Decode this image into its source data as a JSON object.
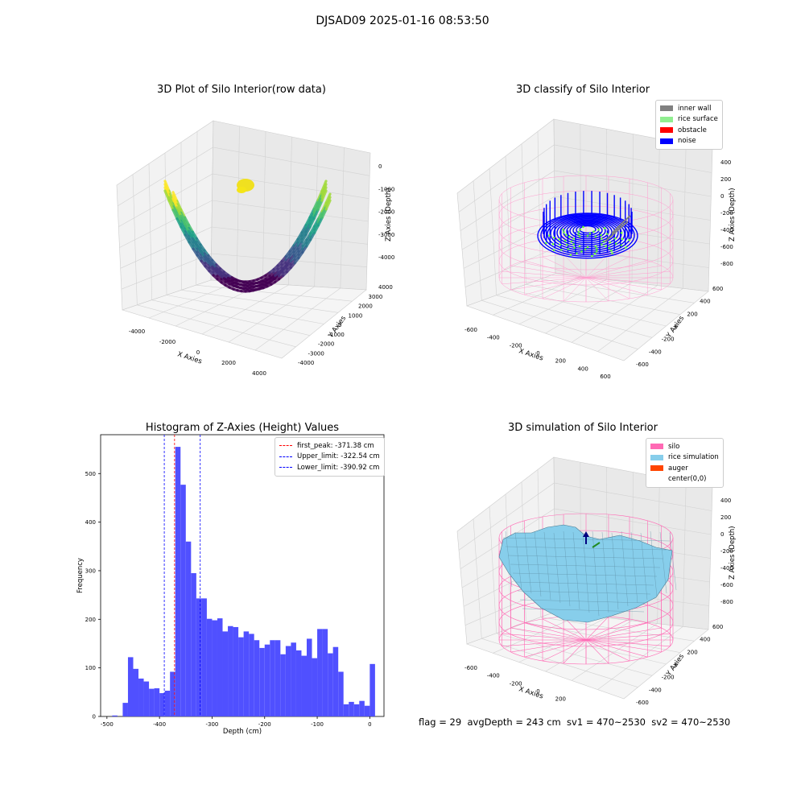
{
  "title": "DJSAD09 2025-01-16 08:53:50",
  "status_text": "flag = 29  avgDepth = 243 cm  sv1 = 470~2530  sv2 = 470~2530",
  "chart_data": [
    {
      "type": "scatter3d",
      "title": "3D Plot of Silo Interior(row data)",
      "xlabel": "X Axies",
      "ylabel": "Y Axies",
      "zlabel": "Z Axies (Depth)",
      "x_ticks": [
        "-4000",
        "-2000",
        "0",
        "2000",
        "4000"
      ],
      "y_ticks": [
        "-4000",
        "-3000",
        "-2000",
        "-1000",
        "0",
        "1000",
        "2000",
        "3000",
        "4000"
      ],
      "z_ticks": [
        "-4000",
        "-3000",
        "-2000",
        "-1000",
        "0"
      ],
      "colormap": "viridis"
    },
    {
      "type": "scatter3d",
      "title": "3D classify of Silo Interior",
      "xlabel": "X Axies",
      "ylabel": "Y Axies",
      "zlabel": "Z Axies (Depth)",
      "x_ticks": [
        "-600",
        "-400",
        "-200",
        "0",
        "200",
        "400",
        "600"
      ],
      "y_ticks": [
        "-600",
        "-400",
        "-200",
        "0",
        "200",
        "400",
        "600"
      ],
      "z_ticks": [
        "-800",
        "-600",
        "-400",
        "-200",
        "0",
        "200",
        "400"
      ],
      "legend": [
        {
          "name": "inner wall",
          "color": "#808080"
        },
        {
          "name": "rice surface",
          "color": "#90ee90"
        },
        {
          "name": "obstacle",
          "color": "#ff0000"
        },
        {
          "name": "noise",
          "color": "#0000ff"
        }
      ]
    },
    {
      "type": "bar",
      "title": "Histogram of Z-Axies (Height) Values",
      "xlabel": "Depth (cm)",
      "ylabel": "Frequency",
      "xlim": [
        -512,
        27
      ],
      "ylim": [
        0,
        580
      ],
      "x_ticks": [
        -500,
        -400,
        -300,
        -200,
        -100,
        0
      ],
      "y_ticks": [
        0,
        100,
        200,
        300,
        400,
        500
      ],
      "bar_color": "#5050ff",
      "bin_start": -490,
      "bin_width": 10,
      "values": [
        2,
        0,
        28,
        122,
        98,
        78,
        72,
        57,
        58,
        48,
        53,
        92,
        555,
        477,
        360,
        295,
        243,
        243,
        201,
        198,
        202,
        175,
        186,
        184,
        163,
        175,
        170,
        157,
        141,
        148,
        157,
        157,
        128,
        145,
        152,
        136,
        125,
        160,
        120,
        180,
        180,
        130,
        143,
        92,
        25,
        30,
        25,
        32,
        22,
        108
      ],
      "vlines": [
        {
          "label": "first_peak: -371.38 cm",
          "value": -371.38,
          "color": "#ff0000"
        },
        {
          "label": "Upper_limit: -322.54 cm",
          "value": -322.54,
          "color": "#0000ff"
        },
        {
          "label": "Lower_limit: -390.92 cm",
          "value": -390.92,
          "color": "#0000ff"
        }
      ]
    },
    {
      "type": "surface3d",
      "title": "3D simulation of Silo Interior",
      "xlabel": "X Axies",
      "ylabel": "Y Axies",
      "zlabel": "Z Axies (Depth)",
      "x_ticks": [
        "-600",
        "-400",
        "-200",
        "0",
        "200",
        "400",
        "600"
      ],
      "y_ticks": [
        "-600",
        "-400",
        "-200",
        "0",
        "200",
        "400",
        "600"
      ],
      "z_ticks": [
        "-800",
        "-600",
        "-400",
        "-200",
        "0",
        "200",
        "400"
      ],
      "legend": [
        {
          "name": "silo",
          "color": "#ff69b4"
        },
        {
          "name": "rice simulation",
          "color": "#87ceeb"
        },
        {
          "name": "auger",
          "color": "#ff4500"
        },
        {
          "name": "center(0,0)",
          "color": "#ffffff"
        }
      ]
    }
  ]
}
